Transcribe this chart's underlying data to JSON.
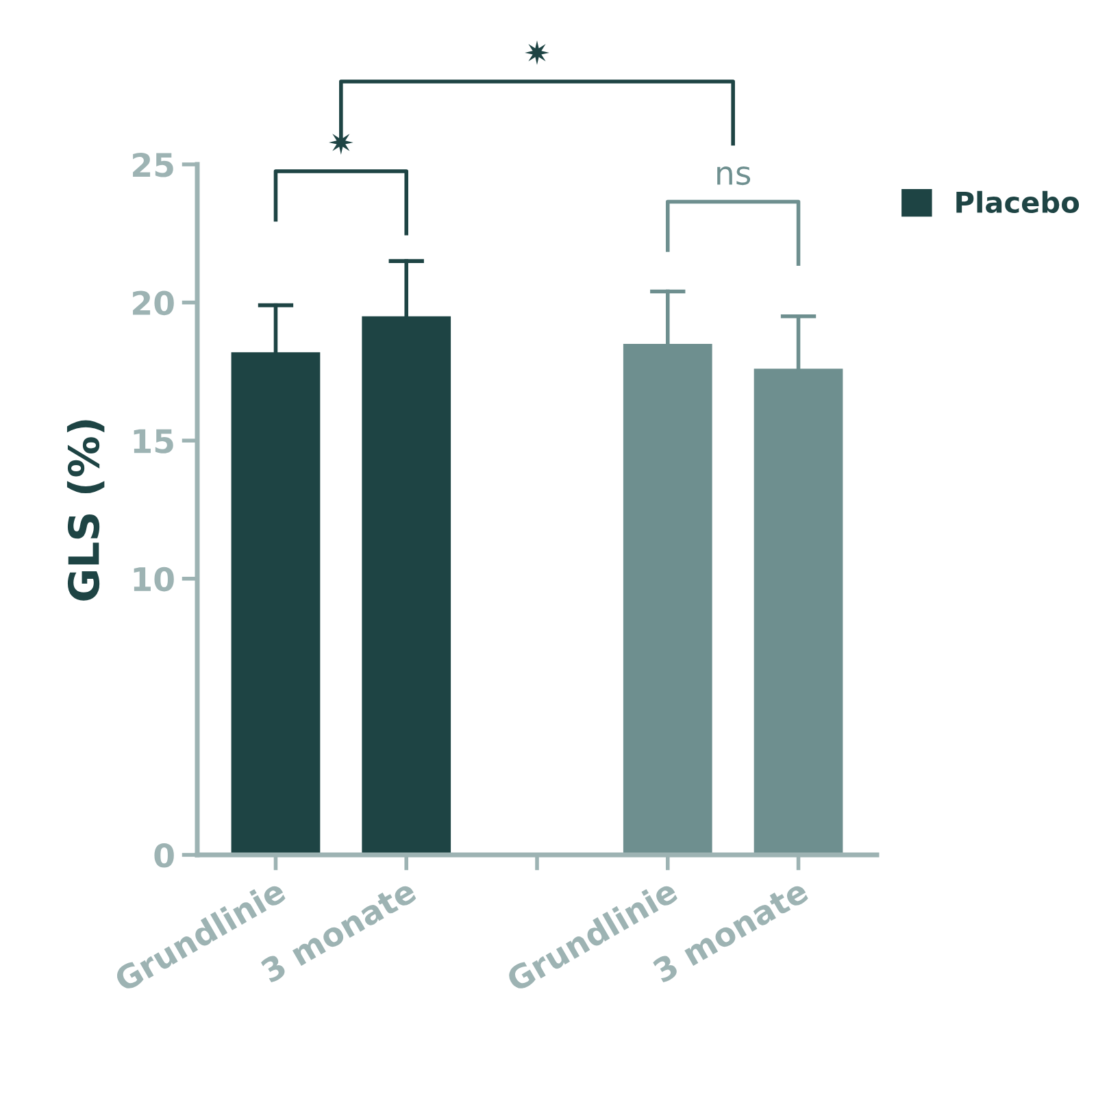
{
  "chart_data": {
    "type": "bar",
    "ylabel": "GLS (%)",
    "categories": [
      "Grundlinie",
      "3 monate",
      null,
      "Grundlinie",
      "3 monate"
    ],
    "series": [
      {
        "name": "Placebo",
        "color": "#1e4444",
        "values": [
          18.2,
          19.5,
          null,
          null,
          null
        ],
        "errors": [
          [
            18.2,
            19.9
          ],
          [
            19.5,
            21.5
          ],
          null,
          null,
          null
        ]
      },
      {
        "color": "#6e8f8f",
        "values": [
          null,
          null,
          null,
          18.5,
          17.6
        ],
        "errors": [
          null,
          null,
          null,
          [
            18.5,
            20.4
          ],
          [
            17.6,
            19.5
          ]
        ]
      }
    ],
    "annotations": [
      "✷",
      "ns",
      "✷"
    ],
    "ylim": [
      0,
      25
    ],
    "yticks": [
      0,
      10,
      15,
      20,
      25
    ],
    "grid": false,
    "legend": "top right"
  }
}
